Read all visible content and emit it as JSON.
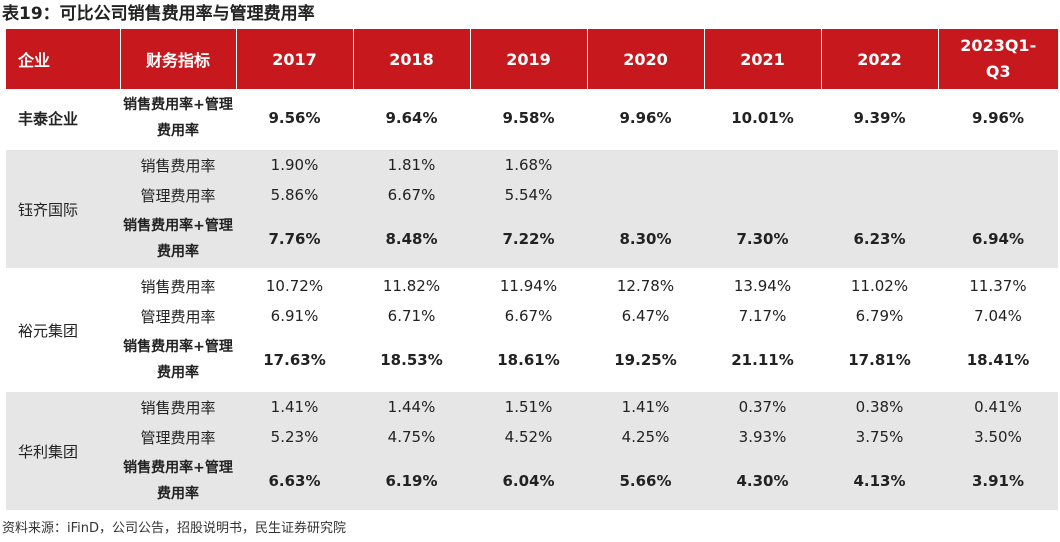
{
  "title": "表19：可比公司销售费用率与管理费用率",
  "header": [
    "企业",
    "财务指标",
    "2017",
    "2018",
    "2019",
    "2020",
    "2021",
    "2022",
    "2023Q1-Q3"
  ],
  "groups": [
    {
      "company": "丰泰企业",
      "rows": [
        {
          "indicator": "销售费用率+管理费用率",
          "total": true,
          "values": [
            "9.56%",
            "9.64%",
            "9.58%",
            "9.96%",
            "10.01%",
            "9.39%",
            "9.96%"
          ]
        }
      ]
    },
    {
      "company": "钰齐国际",
      "rows": [
        {
          "indicator": "销售费用率",
          "total": false,
          "values": [
            "1.90%",
            "1.81%",
            "1.68%",
            "",
            "",
            "",
            ""
          ]
        },
        {
          "indicator": "管理费用率",
          "total": false,
          "values": [
            "5.86%",
            "6.67%",
            "5.54%",
            "",
            "",
            "",
            ""
          ]
        },
        {
          "indicator": "销售费用率+管理费用率",
          "total": true,
          "values": [
            "7.76%",
            "8.48%",
            "7.22%",
            "8.30%",
            "7.30%",
            "6.23%",
            "6.94%"
          ]
        }
      ]
    },
    {
      "company": "裕元集团",
      "rows": [
        {
          "indicator": "销售费用率",
          "total": false,
          "values": [
            "10.72%",
            "11.82%",
            "11.94%",
            "12.78%",
            "13.94%",
            "11.02%",
            "11.37%"
          ]
        },
        {
          "indicator": "管理费用率",
          "total": false,
          "values": [
            "6.91%",
            "6.71%",
            "6.67%",
            "6.47%",
            "7.17%",
            "6.79%",
            "7.04%"
          ]
        },
        {
          "indicator": "销售费用率+管理费用率",
          "total": true,
          "values": [
            "17.63%",
            "18.53%",
            "18.61%",
            "19.25%",
            "21.11%",
            "17.81%",
            "18.41%"
          ]
        }
      ]
    },
    {
      "company": "华利集团",
      "rows": [
        {
          "indicator": "销售费用率",
          "total": false,
          "values": [
            "1.41%",
            "1.44%",
            "1.51%",
            "1.41%",
            "0.37%",
            "0.38%",
            "0.41%"
          ]
        },
        {
          "indicator": "管理费用率",
          "total": false,
          "values": [
            "5.23%",
            "4.75%",
            "4.52%",
            "4.25%",
            "3.93%",
            "3.75%",
            "3.50%"
          ]
        },
        {
          "indicator": "销售费用率+管理费用率",
          "total": true,
          "values": [
            "6.63%",
            "6.19%",
            "6.04%",
            "5.66%",
            "4.30%",
            "4.13%",
            "3.91%"
          ]
        }
      ]
    }
  ],
  "footer": "资料来源：iFinD，公司公告，招股说明书，民生证券研究院"
}
